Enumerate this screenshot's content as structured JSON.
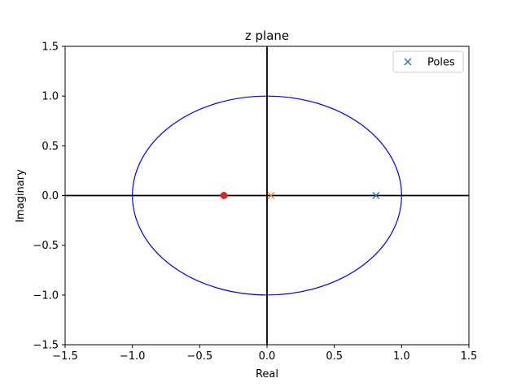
{
  "chart_data": {
    "type": "scatter",
    "title": "z plane",
    "xlabel": "Real",
    "ylabel": "Imaginary",
    "xlim": [
      -1.5,
      1.5
    ],
    "ylim": [
      -1.5,
      1.5
    ],
    "x_ticks": [
      -1.5,
      -1.0,
      -0.5,
      0.0,
      0.5,
      1.0,
      1.5
    ],
    "y_ticks": [
      -1.5,
      -1.0,
      -0.5,
      0.0,
      0.5,
      1.0,
      1.5
    ],
    "x_tick_labels": [
      "−1.5",
      "−1.0",
      "−0.5",
      "0.0",
      "0.5",
      "1.0",
      "1.5"
    ],
    "y_tick_labels": [
      "−1.5",
      "−1.0",
      "−0.5",
      "0.0",
      "0.5",
      "1.0",
      "1.5"
    ],
    "grid": false,
    "legend_position": "top-right",
    "unit_circle": {
      "radius": 1.0,
      "color": "#0000ff"
    },
    "reference_axes": {
      "color": "#000000"
    },
    "series": [
      {
        "name": "Poles",
        "marker": "x",
        "color": "#1f77b4",
        "points": [
          [
            0.81,
            0.0
          ]
        ],
        "in_legend": true
      },
      {
        "marker": "x",
        "color": "#ff7f0e",
        "points": [
          [
            0.03,
            0.0
          ]
        ],
        "in_legend": false
      },
      {
        "marker": "o",
        "color": "#d62728",
        "points": [
          [
            -0.32,
            0.0
          ]
        ],
        "in_legend": false
      }
    ]
  }
}
